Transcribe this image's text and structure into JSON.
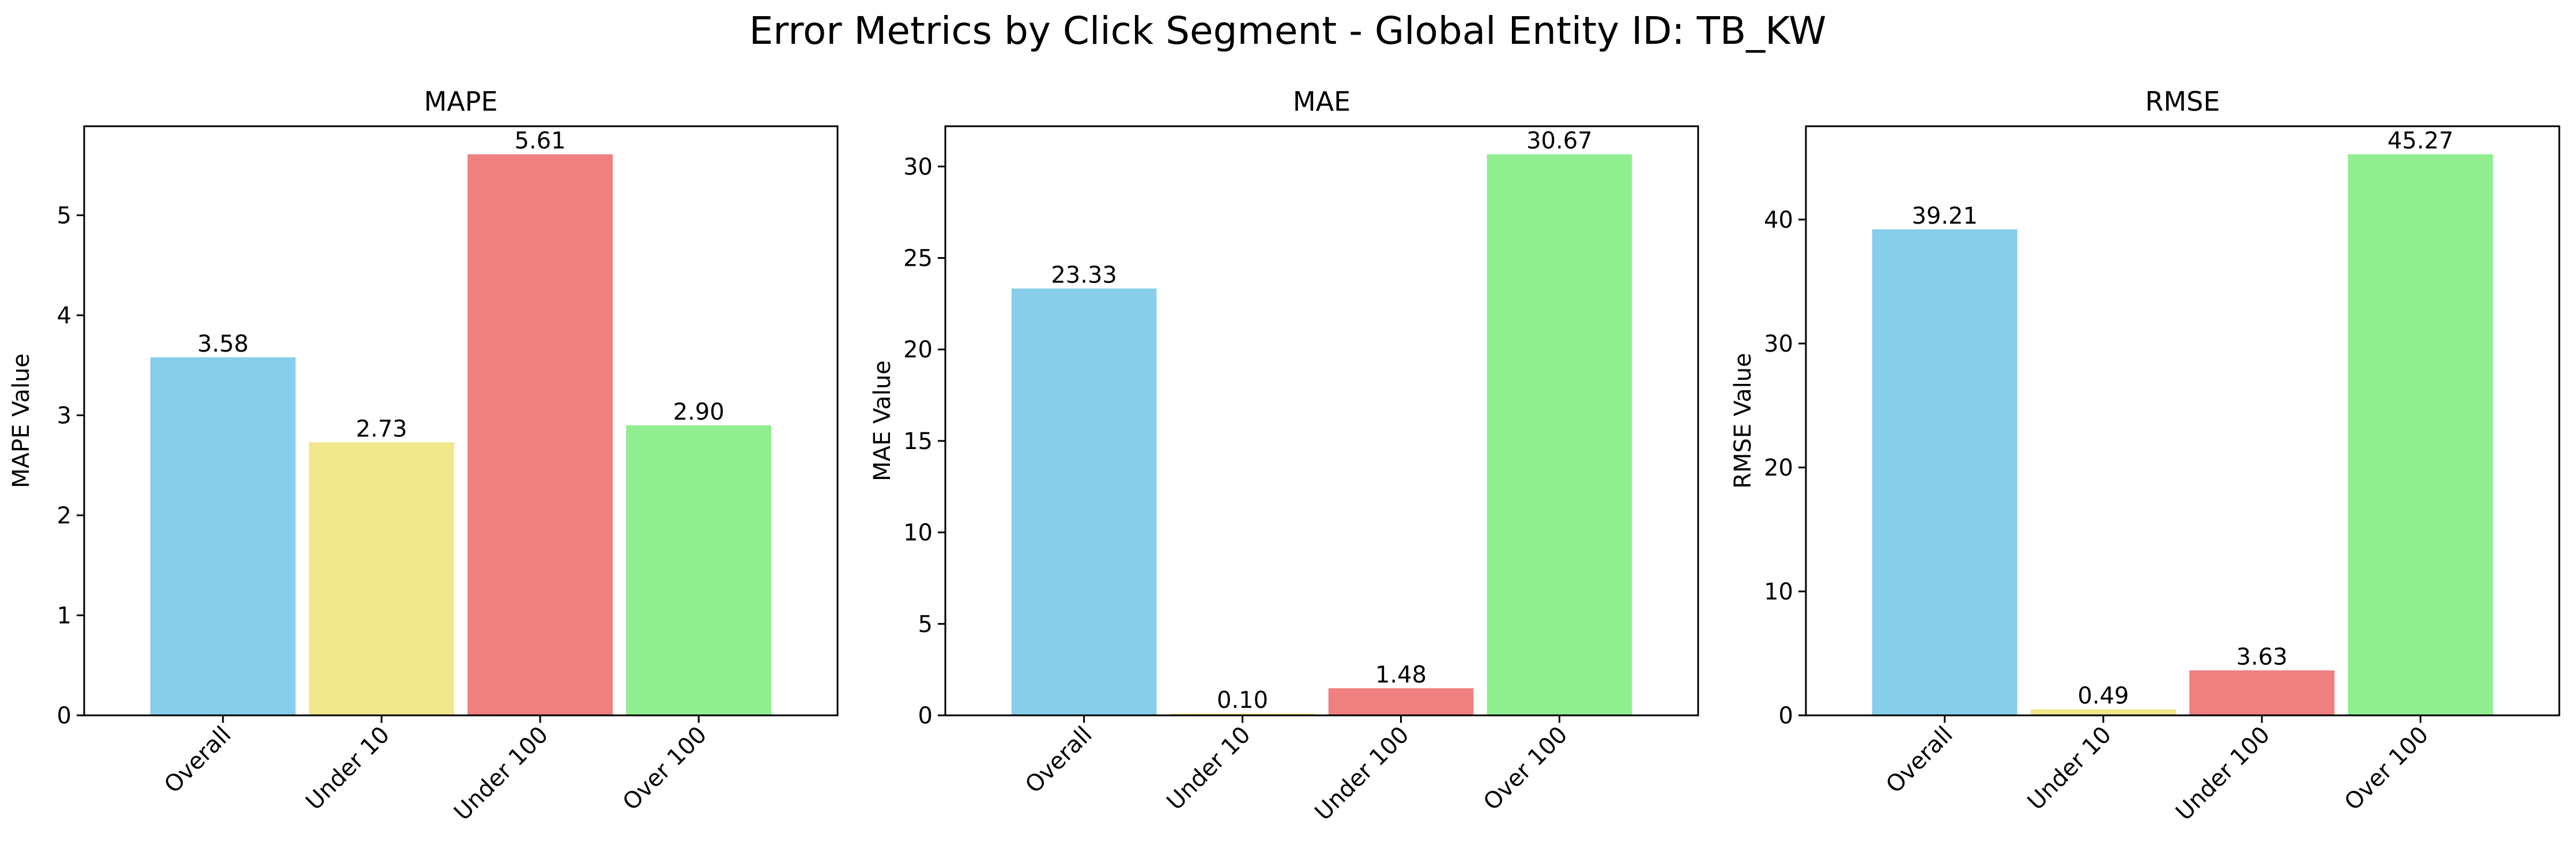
{
  "figure": {
    "title": "Error Metrics by Click Segment - Global Entity ID: TB_KW"
  },
  "palette": {
    "bar_colors": [
      "#87CEEB",
      "#F0E68C",
      "#F08080",
      "#90EE90"
    ],
    "axis_color": "#000000",
    "background": "#ffffff"
  },
  "chart_data": [
    {
      "type": "bar",
      "title": "MAPE",
      "xlabel": "",
      "ylabel": "MAPE Value",
      "categories": [
        "Overall",
        "Under 10",
        "Under 100",
        "Over 100"
      ],
      "values": [
        3.58,
        2.73,
        5.61,
        2.9
      ],
      "value_labels": [
        "3.58",
        "2.73",
        "5.61",
        "2.90"
      ],
      "ylim": [
        0,
        5.89
      ],
      "yticks": [
        0,
        1,
        2,
        3,
        4,
        5
      ],
      "grid": false,
      "legend": "none"
    },
    {
      "type": "bar",
      "title": "MAE",
      "xlabel": "",
      "ylabel": "MAE Value",
      "categories": [
        "Overall",
        "Under 10",
        "Under 100",
        "Over 100"
      ],
      "values": [
        23.33,
        0.1,
        1.48,
        30.67
      ],
      "value_labels": [
        "23.33",
        "0.10",
        "1.48",
        "30.67"
      ],
      "ylim": [
        0,
        32.2
      ],
      "yticks": [
        0,
        5,
        10,
        15,
        20,
        25,
        30
      ],
      "grid": false,
      "legend": "none"
    },
    {
      "type": "bar",
      "title": "RMSE",
      "xlabel": "",
      "ylabel": "RMSE Value",
      "categories": [
        "Overall",
        "Under 10",
        "Under 100",
        "Over 100"
      ],
      "values": [
        39.21,
        0.49,
        3.63,
        45.27
      ],
      "value_labels": [
        "39.21",
        "0.49",
        "3.63",
        "45.27"
      ],
      "ylim": [
        0,
        47.53
      ],
      "yticks": [
        0,
        10,
        20,
        30,
        40
      ],
      "grid": false,
      "legend": "none"
    }
  ]
}
